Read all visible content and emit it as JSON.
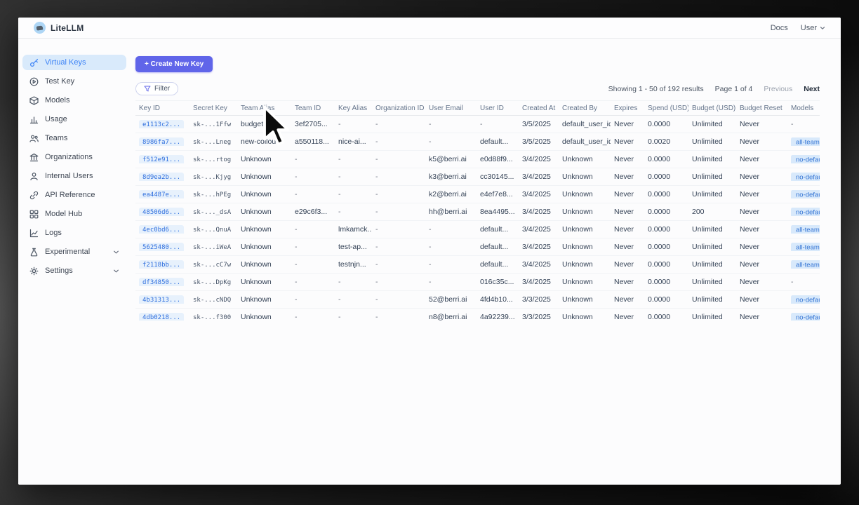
{
  "brand": {
    "name": "LiteLLM"
  },
  "topnav": {
    "docs": "Docs",
    "user": "User"
  },
  "sidebar": {
    "items": [
      {
        "label": "Virtual Keys",
        "icon": "key",
        "active": true,
        "chevron": false
      },
      {
        "label": "Test Key",
        "icon": "play",
        "active": false,
        "chevron": false
      },
      {
        "label": "Models",
        "icon": "box",
        "active": false,
        "chevron": false
      },
      {
        "label": "Usage",
        "icon": "bar-chart",
        "active": false,
        "chevron": false
      },
      {
        "label": "Teams",
        "icon": "users",
        "active": false,
        "chevron": false
      },
      {
        "label": "Organizations",
        "icon": "building",
        "active": false,
        "chevron": false
      },
      {
        "label": "Internal Users",
        "icon": "user",
        "active": false,
        "chevron": false
      },
      {
        "label": "API Reference",
        "icon": "link",
        "active": false,
        "chevron": false
      },
      {
        "label": "Model Hub",
        "icon": "grid",
        "active": false,
        "chevron": false
      },
      {
        "label": "Logs",
        "icon": "line-chart",
        "active": false,
        "chevron": false
      },
      {
        "label": "Experimental",
        "icon": "flask",
        "active": false,
        "chevron": true
      },
      {
        "label": "Settings",
        "icon": "gear",
        "active": false,
        "chevron": true
      }
    ]
  },
  "toolbar": {
    "create": "+ Create New Key",
    "filter": "Filter"
  },
  "pagination": {
    "showing": "Showing 1 - 50 of 192 results",
    "page": "Page 1 of 4",
    "prev": "Previous",
    "next": "Next"
  },
  "table": {
    "columns": [
      "Key ID",
      "Secret Key",
      "Team Alias",
      "Team ID",
      "Key Alias",
      "Organization ID",
      "User Email",
      "User ID",
      "Created At",
      "Created By",
      "Expires",
      "Spend (USD)",
      "Budget (USD)",
      "Budget Reset",
      "Models"
    ],
    "rows": [
      [
        "e1113c2...",
        "sk-...1Ffw",
        "budget_tes...",
        "3ef2705...",
        "-",
        "-",
        "-",
        "-",
        "3/5/2025",
        "default_user_id",
        "Never",
        "0.0000",
        "Unlimited",
        "Never",
        "-"
      ],
      [
        "8986fa7...",
        "sk-...Lneg",
        "new-collou...",
        "a550118...",
        "nice-ai...",
        "-",
        "-",
        "default...",
        "3/5/2025",
        "default_user_id",
        "Never",
        "0.0020",
        "Unlimited",
        "Never",
        "all-team-m"
      ],
      [
        "f512e91...",
        "sk-...rtog",
        "Unknown",
        "-",
        "-",
        "-",
        "k5@berri.ai",
        "e0d88f9...",
        "3/4/2025",
        "Unknown",
        "Never",
        "0.0000",
        "Unlimited",
        "Never",
        "no-default"
      ],
      [
        "8d9ea2b...",
        "sk-...Kjyg",
        "Unknown",
        "-",
        "-",
        "-",
        "k3@berri.ai",
        "cc30145...",
        "3/4/2025",
        "Unknown",
        "Never",
        "0.0000",
        "Unlimited",
        "Never",
        "no-default"
      ],
      [
        "ea4487e...",
        "sk-...hPEg",
        "Unknown",
        "-",
        "-",
        "-",
        "k2@berri.ai",
        "e4ef7e8...",
        "3/4/2025",
        "Unknown",
        "Never",
        "0.0000",
        "Unlimited",
        "Never",
        "no-default"
      ],
      [
        "48506d6...",
        "sk-..._dsA",
        "Unknown",
        "e29c6f3...",
        "-",
        "-",
        "hh@berri.ai",
        "8ea4495...",
        "3/4/2025",
        "Unknown",
        "Never",
        "0.0000",
        "200",
        "Never",
        "no-default"
      ],
      [
        "4ec0bd6...",
        "sk-...QnuA",
        "Unknown",
        "-",
        "lmkamck...",
        "-",
        "-",
        "default...",
        "3/4/2025",
        "Unknown",
        "Never",
        "0.0000",
        "Unlimited",
        "Never",
        "all-team-m"
      ],
      [
        "5625480...",
        "sk-...iWeA",
        "Unknown",
        "-",
        "test-ap...",
        "-",
        "-",
        "default...",
        "3/4/2025",
        "Unknown",
        "Never",
        "0.0000",
        "Unlimited",
        "Never",
        "all-team-m"
      ],
      [
        "f2118bb...",
        "sk-...cC7w",
        "Unknown",
        "-",
        "testnjn...",
        "-",
        "-",
        "default...",
        "3/4/2025",
        "Unknown",
        "Never",
        "0.0000",
        "Unlimited",
        "Never",
        "all-team-m"
      ],
      [
        "df34850...",
        "sk-...DpKg",
        "Unknown",
        "-",
        "-",
        "-",
        "-",
        "016c35c...",
        "3/4/2025",
        "Unknown",
        "Never",
        "0.0000",
        "Unlimited",
        "Never",
        "-"
      ],
      [
        "4b31313...",
        "sk-...cNDQ",
        "Unknown",
        "-",
        "-",
        "-",
        "52@berri.ai",
        "4fd4b10...",
        "3/3/2025",
        "Unknown",
        "Never",
        "0.0000",
        "Unlimited",
        "Never",
        "no-default"
      ],
      [
        "4db0218...",
        "sk-...f300",
        "Unknown",
        "-",
        "-",
        "-",
        "n8@berri.ai",
        "4a92239...",
        "3/3/2025",
        "Unknown",
        "Never",
        "0.0000",
        "Unlimited",
        "Never",
        "no-default"
      ]
    ]
  },
  "colors": {
    "accent": "#6065e9",
    "active_nav_bg": "#d9eafb",
    "active_nav_text": "#3b82f6",
    "badge_bg": "#d8e9fb",
    "badge_text": "#3575d4"
  }
}
